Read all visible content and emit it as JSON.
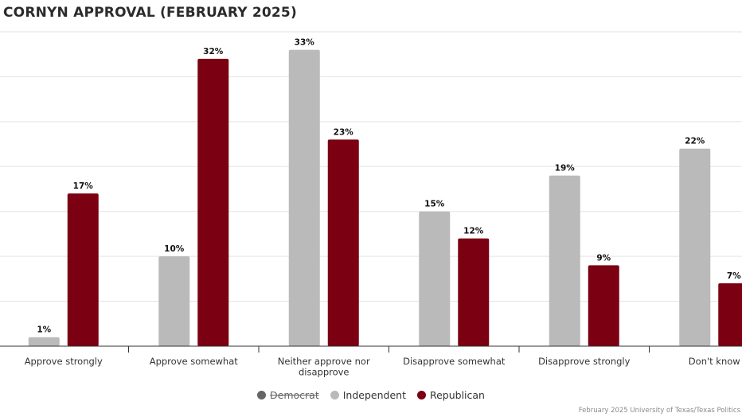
{
  "header": {
    "title": "CORNYN APPROVAL (FEBRUARY 2025)"
  },
  "credit": {
    "text": "February 2025 University of Texas/Texas Politics"
  },
  "legend": {
    "items": [
      {
        "label": "Democrat",
        "color": "#666666",
        "hidden": true
      },
      {
        "label": "Independent",
        "color": "#bababa",
        "hidden": false
      },
      {
        "label": "Republican",
        "color": "#7b0011",
        "hidden": false
      }
    ]
  },
  "chart_data": {
    "type": "bar",
    "title": "CORNYN APPROVAL (FEBRUARY 2025)",
    "xlabel": "",
    "ylabel": "",
    "ylim": [
      0,
      35
    ],
    "grid": true,
    "legend_position": "bottom",
    "categories": [
      "Approve strongly",
      "Approve somewhat",
      "Neither approve nor disapprove",
      "Disapprove somewhat",
      "Disapprove strongly",
      "Don't know"
    ],
    "category_lines": [
      [
        "Approve strongly"
      ],
      [
        "Approve somewhat"
      ],
      [
        "Neither approve nor",
        "disapprove"
      ],
      [
        "Disapprove somewhat"
      ],
      [
        "Disapprove strongly"
      ],
      [
        "Don't know"
      ]
    ],
    "series": [
      {
        "name": "Independent",
        "color": "#bababa",
        "values": [
          1,
          10,
          33,
          15,
          19,
          22
        ],
        "labels": [
          "1%",
          "10%",
          "33%",
          "15%",
          "19%",
          "22%"
        ]
      },
      {
        "name": "Republican",
        "color": "#7b0011",
        "values": [
          17,
          32,
          23,
          12,
          9,
          7
        ],
        "labels": [
          "17%",
          "32%",
          "23%",
          "12%",
          "9%",
          "7%"
        ]
      }
    ]
  }
}
